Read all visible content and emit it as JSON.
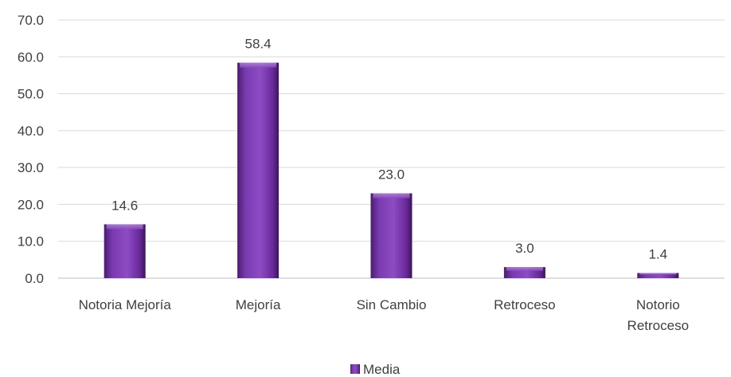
{
  "chart_data": {
    "type": "bar",
    "categories": [
      "Notoria Mejoría",
      "Mejoría",
      "Sin Cambio",
      "Retroceso",
      "Notorio Retroceso"
    ],
    "series": [
      {
        "name": "Media",
        "values": [
          14.6,
          58.4,
          23.0,
          3.0,
          1.4
        ],
        "color": "#7030A0"
      }
    ],
    "data_labels": [
      "14.6",
      "58.4",
      "23.0",
      "3.0",
      "1.4"
    ],
    "y_ticks": [
      "0.0",
      "10.0",
      "20.0",
      "30.0",
      "40.0",
      "50.0",
      "60.0",
      "70.0"
    ],
    "ylim": [
      0,
      70
    ],
    "grid": true,
    "legend_position": "bottom",
    "title": "",
    "xlabel": "",
    "ylabel": ""
  }
}
